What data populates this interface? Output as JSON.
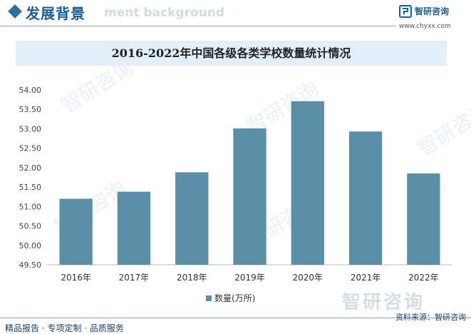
{
  "header": {
    "section_title": "发展背景",
    "section_subtitle": "ment background",
    "brand_name": "智研咨询",
    "brand_url": "www.chyxx.com",
    "accent_color": "#1e5d8c"
  },
  "footer": {
    "left_text": "精品报告 · 专项定制 · 品质服务",
    "source_text": "资料来源：智研咨询"
  },
  "watermark": {
    "text": "智研咨询"
  },
  "chart_data": {
    "type": "bar",
    "title": "2016-2022年中国各级各类学校数量统计情况",
    "categories": [
      "2016年",
      "2017年",
      "2018年",
      "2019年",
      "2020年",
      "2021年",
      "2022年"
    ],
    "series": [
      {
        "name": "数量(万所)",
        "values": [
          51.2,
          51.38,
          51.88,
          53.01,
          53.71,
          52.93,
          51.85
        ],
        "color": "#5b8fa8"
      }
    ],
    "ylim": [
      49.5,
      54.0
    ],
    "yticks": [
      "49.50",
      "50.00",
      "50.50",
      "51.00",
      "51.50",
      "52.00",
      "52.50",
      "53.00",
      "53.50",
      "54.00"
    ],
    "grid": false,
    "legend": "bottom"
  }
}
